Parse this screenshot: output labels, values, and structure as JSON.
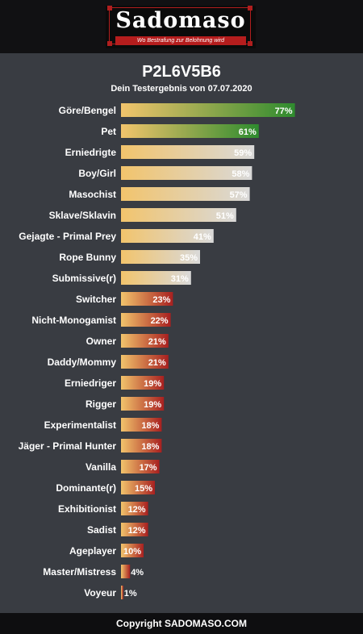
{
  "brand": {
    "logo_text": "Sadomaso",
    "tagline": "Wo Bestrafung zur Belohnung wird"
  },
  "header": {
    "title": "P2L6V5B6",
    "subtitle": "Dein Testergebnis von 07.07.2020"
  },
  "footer": {
    "copyright": "Copyright SADOMASO.COM"
  },
  "colors": {
    "background": "#393c42",
    "bar_start": "#f2c46c",
    "high": "#2e8b2e",
    "mid": "#d9d9d9",
    "low": "#a82020"
  },
  "chart_data": {
    "type": "bar",
    "orientation": "horizontal",
    "title": "P2L6V5B6",
    "subtitle": "Dein Testergebnis von 07.07.2020",
    "xlim": [
      0,
      100
    ],
    "value_suffix": "%",
    "categories": [
      "Göre/Bengel",
      "Pet",
      "Erniedrigte",
      "Boy/Girl",
      "Masochist",
      "Sklave/Sklavin",
      "Gejagte - Primal Prey",
      "Rope Bunny",
      "Submissive(r)",
      "Switcher",
      "Nicht-Monogamist",
      "Owner",
      "Daddy/Mommy",
      "Erniedriger",
      "Rigger",
      "Experimentalist",
      "Jäger - Primal Hunter",
      "Vanilla",
      "Dominante(r)",
      "Exhibitionist",
      "Sadist",
      "Ageplayer",
      "Master/Mistress",
      "Voyeur"
    ],
    "values": [
      77,
      61,
      59,
      58,
      57,
      51,
      41,
      35,
      31,
      23,
      22,
      21,
      21,
      19,
      19,
      18,
      18,
      17,
      15,
      12,
      12,
      10,
      4,
      1
    ]
  }
}
